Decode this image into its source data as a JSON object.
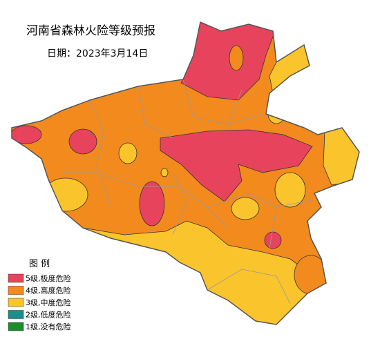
{
  "header": {
    "title": "河南省森林火险等级预报",
    "date": "日期：2023年3月14日"
  },
  "legend": {
    "title": "图  例",
    "items": [
      {
        "label": "5级,极度危险",
        "color": "#e8435c"
      },
      {
        "label": "4级,高度危险",
        "color": "#f28a1e"
      },
      {
        "label": "3级,中度危险",
        "color": "#f9c42c"
      },
      {
        "label": "2级,低度危险",
        "color": "#1b8f8c"
      },
      {
        "label": "1级,没有危险",
        "color": "#1f8a2e"
      }
    ]
  }
}
